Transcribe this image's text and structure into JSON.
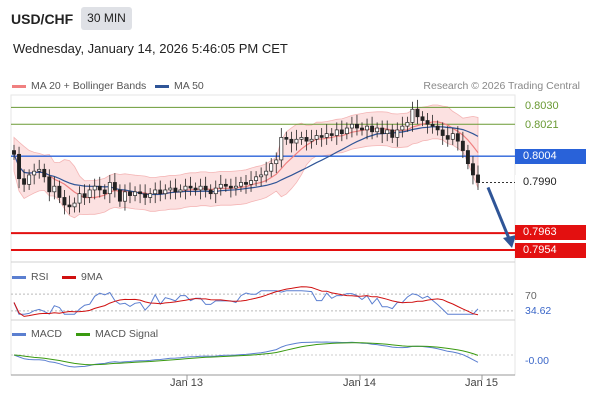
{
  "header": {
    "symbol": "USD/CHF",
    "timeframe": "30 MIN",
    "datetime": "Wednesday, January 14, 2026 5:46:05 PM CET",
    "research": "Research © 2026 Trading Central"
  },
  "legend": {
    "ma20": "MA 20 + Bollinger Bands",
    "ma50": "MA 50",
    "rsi": "RSI",
    "rsi_ma": "9MA",
    "macd": "MACD",
    "macd_signal": "MACD Signal"
  },
  "colors": {
    "ma20": "#f08080",
    "ma50": "#2f5597",
    "bollinger_fill": "#fbdcdc",
    "up_candle": "#ffffff",
    "down_candle": "#222222",
    "resistance": "#6a9a34",
    "pivot": "#2962d9",
    "support": "#e31010",
    "rsi": "#5b7fd0",
    "rsi_ma": "#d01010",
    "macd": "#5b7fd0",
    "macd_signal": "#3a9a10",
    "arrow": "#2f5597"
  },
  "levels": {
    "r2": "0.8030",
    "r1": "0.8021",
    "pivot": "0.8004",
    "last": "0.7990",
    "s1": "0.7963",
    "s2": "0.7954"
  },
  "indicators": {
    "rsi_level": "70",
    "rsi_value": "34.62",
    "macd_value": "-0.00"
  },
  "xaxis": {
    "labels": [
      "Jan 13",
      "Jan 14",
      "Jan 15"
    ]
  },
  "chart_data": {
    "type": "candlestick",
    "title": "USD/CHF",
    "ylim": [
      0.7954,
      0.8035
    ],
    "forecast": {
      "direction": "down",
      "from": 0.799,
      "to": 0.7954
    },
    "closes": [
      0.8005,
      0.7992,
      0.7989,
      0.7994,
      0.7996,
      0.7997,
      0.7993,
      0.7985,
      0.7988,
      0.7982,
      0.7978,
      0.7977,
      0.7979,
      0.7984,
      0.7982,
      0.7986,
      0.7988,
      0.7986,
      0.7984,
      0.799,
      0.7986,
      0.798,
      0.7985,
      0.7983,
      0.7985,
      0.7984,
      0.7982,
      0.7984,
      0.7986,
      0.7984,
      0.7986,
      0.7987,
      0.7985,
      0.7986,
      0.7988,
      0.7987,
      0.7986,
      0.7988,
      0.7986,
      0.7984,
      0.7987,
      0.7989,
      0.7988,
      0.7987,
      0.7988,
      0.799,
      0.7989,
      0.7991,
      0.7993,
      0.7994,
      0.7996,
      0.8,
      0.8002,
      0.8014,
      0.8013,
      0.8011,
      0.8013,
      0.8014,
      0.8012,
      0.8013,
      0.8015,
      0.8014,
      0.8016,
      0.8015,
      0.8018,
      0.8016,
      0.8019,
      0.8021,
      0.8019,
      0.8018,
      0.802,
      0.8017,
      0.8019,
      0.8016,
      0.8018,
      0.8014,
      0.8018,
      0.802,
      0.8022,
      0.8029,
      0.8025,
      0.8023,
      0.8021,
      0.802,
      0.8018,
      0.8015,
      0.8013,
      0.8016,
      0.8012,
      0.8007,
      0.8,
      0.7994,
      0.799
    ],
    "ma20_last": 0.801,
    "ma50_last": 0.801,
    "rsi_last": 34.62,
    "macd_last": -0.0
  }
}
